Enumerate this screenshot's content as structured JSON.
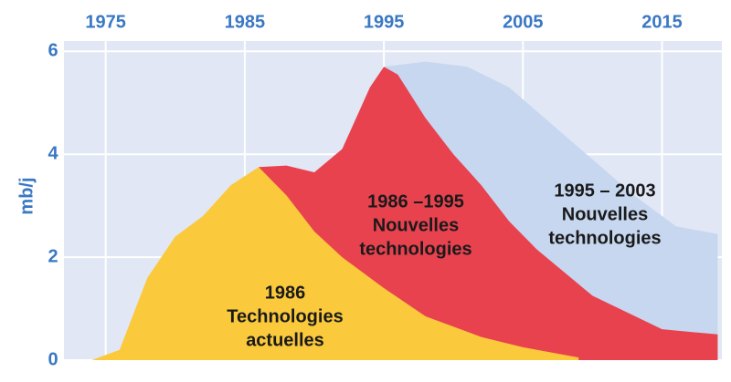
{
  "chart_data": {
    "type": "area",
    "ylabel": "mb/j",
    "xlim": [
      1972,
      2019.3
    ],
    "ylim": [
      0,
      6.2
    ],
    "xticks": [
      1975,
      1985,
      1995,
      2005,
      2015
    ],
    "yticks": [
      0,
      2,
      4,
      6
    ],
    "grid": true,
    "series": [
      {
        "label": [
          "1995 – 2003",
          "Nouvelles",
          "technologies"
        ],
        "color": "#c6d7ef",
        "x": [
          1995,
          1998,
          2001,
          2004,
          2007,
          2010,
          2013,
          2016,
          2019
        ],
        "values": [
          5.7,
          5.8,
          5.7,
          5.3,
          4.6,
          3.9,
          3.2,
          2.6,
          2.45
        ]
      },
      {
        "label": [
          "1986 –1995",
          "Nouvelles",
          "technologies"
        ],
        "color": "#e8424f",
        "x": [
          1986,
          1988,
          1990,
          1992,
          1994,
          1995,
          1996,
          1998,
          2000,
          2002,
          2004,
          2006,
          2010,
          2015,
          2019
        ],
        "values": [
          3.75,
          3.78,
          3.65,
          4.1,
          5.3,
          5.7,
          5.55,
          4.7,
          4.0,
          3.4,
          2.7,
          2.15,
          1.25,
          0.6,
          0.5
        ]
      },
      {
        "label": [
          "1986",
          "Technologies",
          "actuelles"
        ],
        "color": "#fbc93c",
        "x": [
          1974,
          1976,
          1978,
          1980,
          1982,
          1984,
          1986,
          1988,
          1990,
          1992,
          1995,
          1998,
          2002,
          2005,
          2009
        ],
        "values": [
          0,
          0.2,
          1.6,
          2.4,
          2.8,
          3.4,
          3.75,
          3.2,
          2.5,
          2.0,
          1.4,
          0.85,
          0.45,
          0.25,
          0.05
        ]
      }
    ]
  }
}
